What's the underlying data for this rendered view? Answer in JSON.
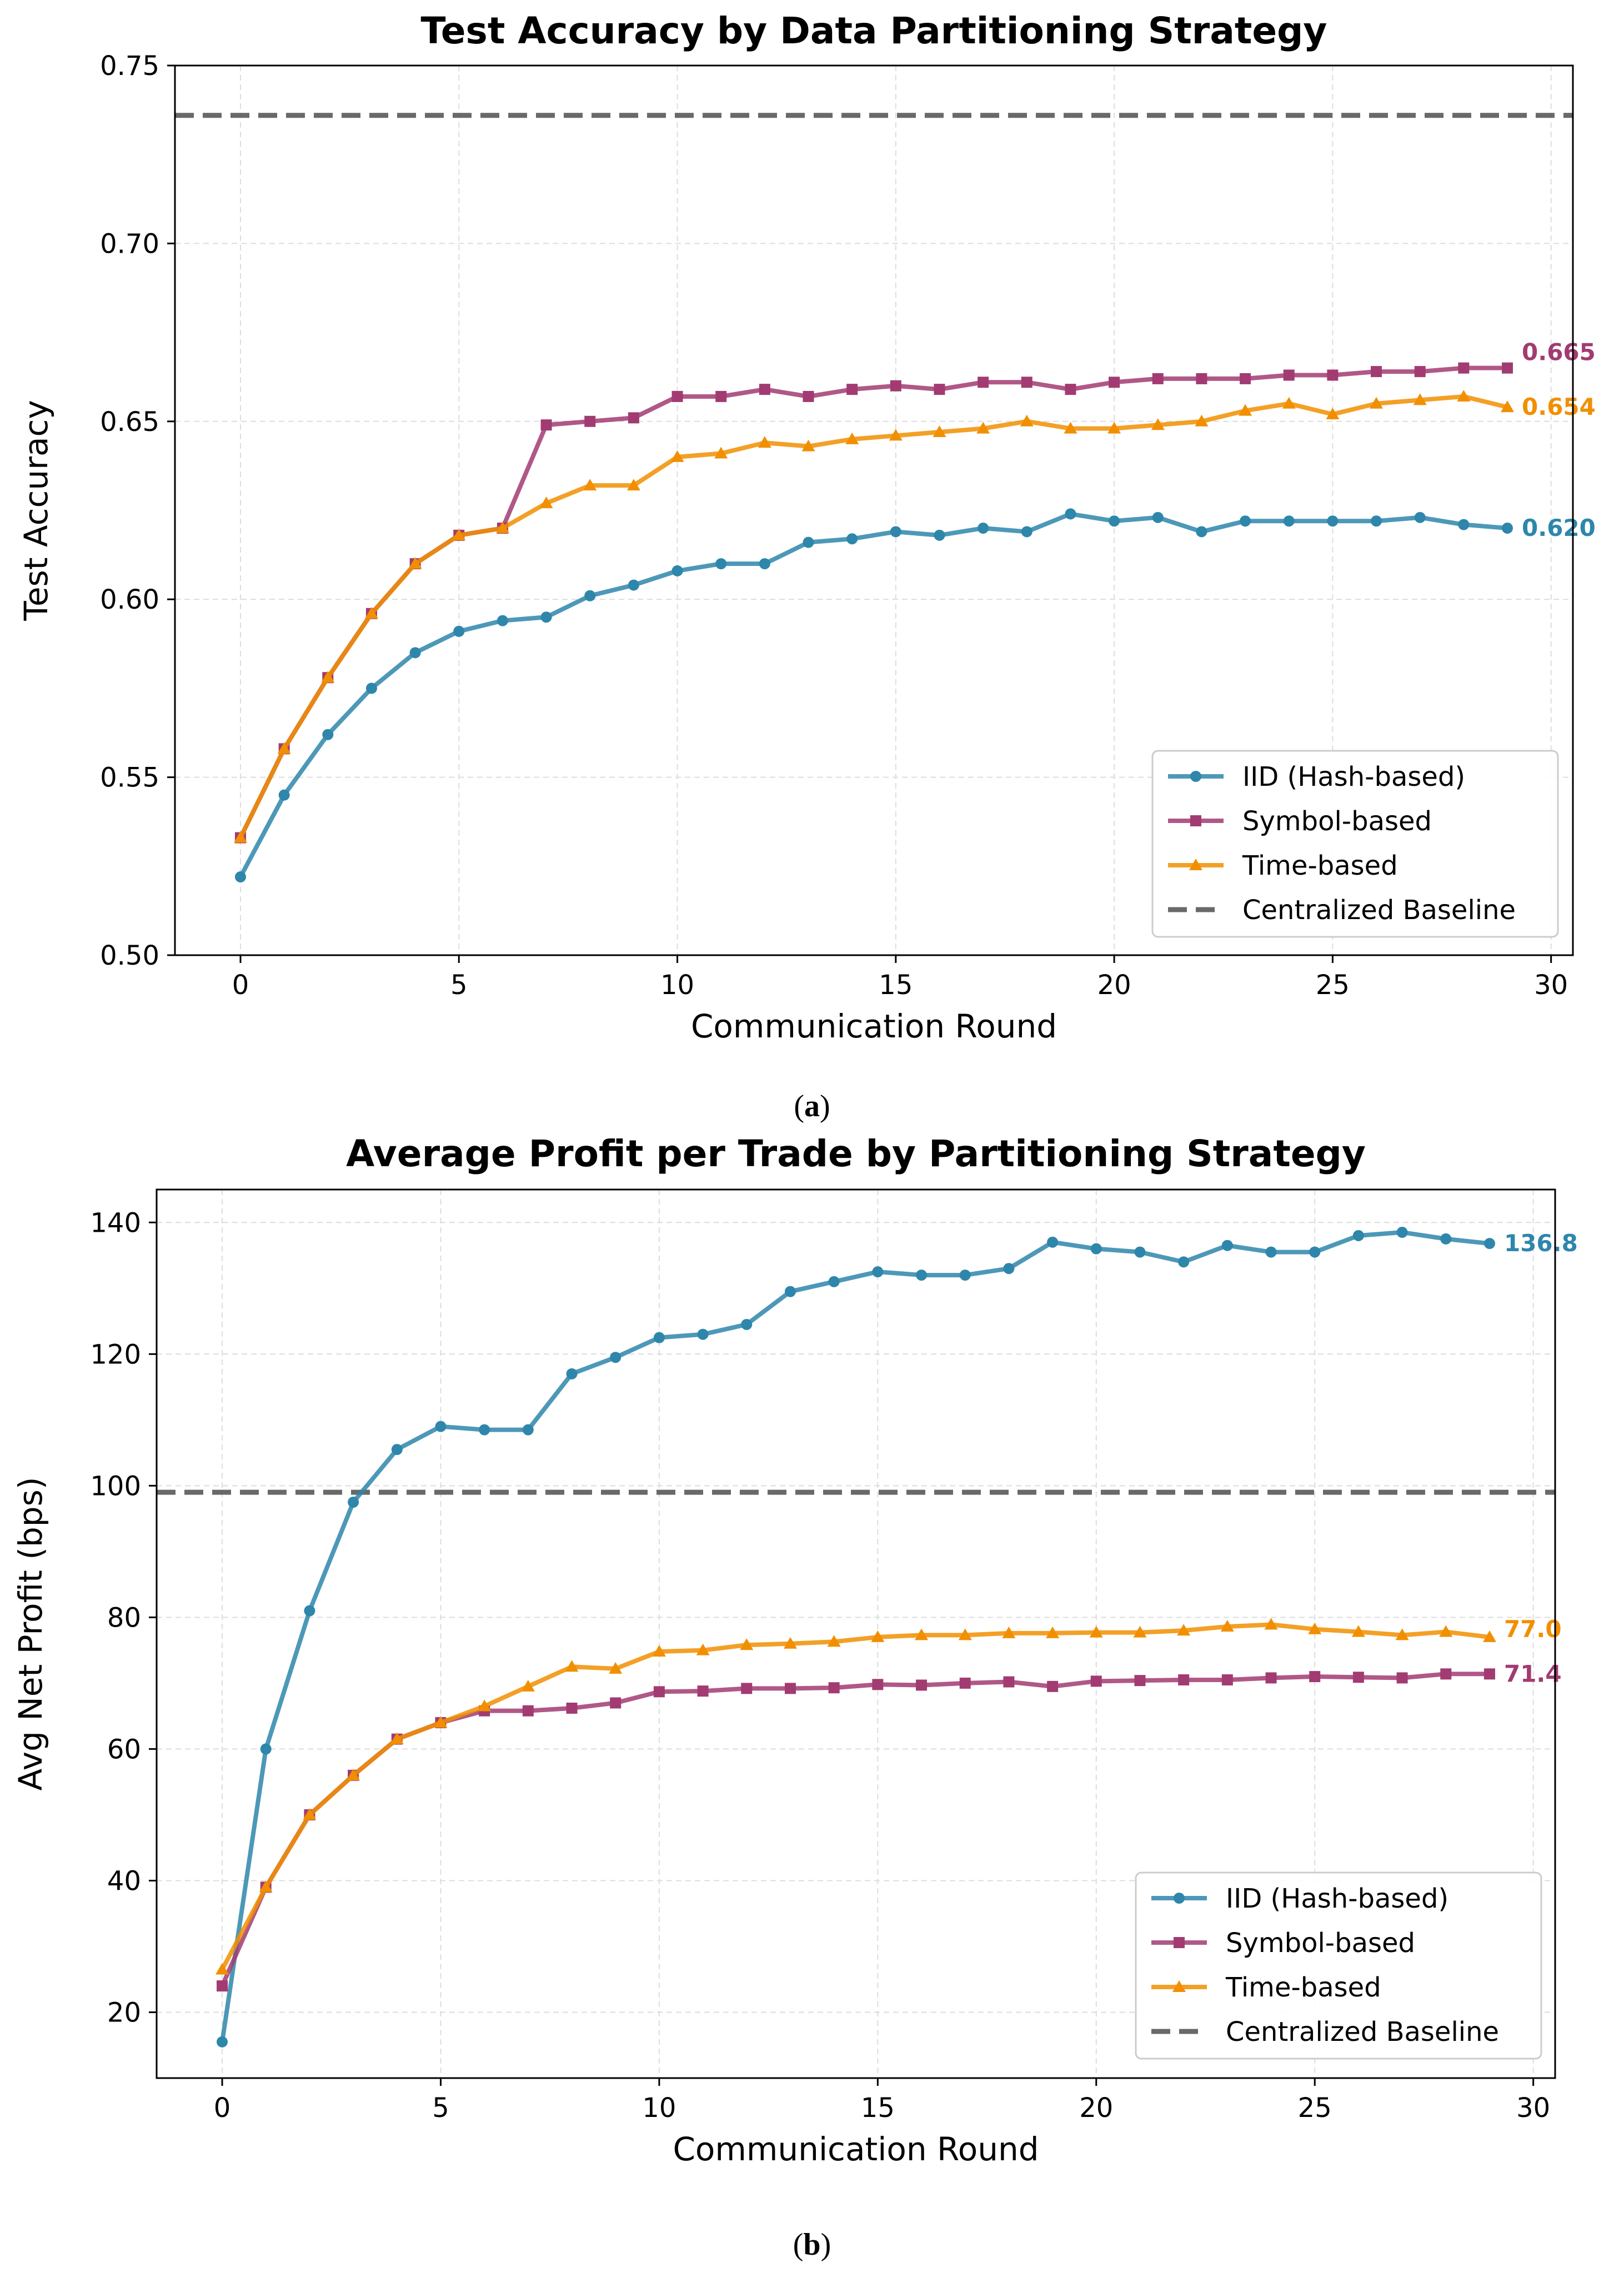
{
  "chart_data": [
    {
      "type": "line",
      "panel_label": "a",
      "title": "Test Accuracy by Data Partitioning Strategy",
      "xlabel": "Communication Round",
      "ylabel": "Test Accuracy",
      "xlim": [
        -1.5,
        30.5
      ],
      "ylim": [
        0.5,
        0.75
      ],
      "xticks": [
        0,
        5,
        10,
        15,
        20,
        25,
        30
      ],
      "yticks": [
        0.5,
        0.55,
        0.6,
        0.65,
        0.7,
        0.75
      ],
      "ytick_labels": [
        "0.50",
        "0.55",
        "0.60",
        "0.65",
        "0.70",
        "0.75"
      ],
      "grid": true,
      "legend_position": "lower-right",
      "x": [
        0,
        1,
        2,
        3,
        4,
        5,
        6,
        7,
        8,
        9,
        10,
        11,
        12,
        13,
        14,
        15,
        16,
        17,
        18,
        19,
        20,
        21,
        22,
        23,
        24,
        25,
        26,
        27,
        28,
        29
      ],
      "series": [
        {
          "name": "IID (Hash-based)",
          "color": "#2e86ab",
          "marker": "circle",
          "values": [
            0.522,
            0.545,
            0.562,
            0.575,
            0.585,
            0.591,
            0.594,
            0.595,
            0.601,
            0.604,
            0.608,
            0.61,
            0.61,
            0.616,
            0.617,
            0.619,
            0.618,
            0.62,
            0.619,
            0.624,
            0.622,
            0.623,
            0.619,
            0.622,
            0.622,
            0.622,
            0.622,
            0.623,
            0.621,
            0.62
          ],
          "end_label": "0.620"
        },
        {
          "name": "Symbol-based",
          "color": "#a23b72",
          "marker": "square",
          "values": [
            0.533,
            0.558,
            0.578,
            0.596,
            0.61,
            0.618,
            0.62,
            0.649,
            0.65,
            0.651,
            0.657,
            0.657,
            0.659,
            0.657,
            0.659,
            0.66,
            0.659,
            0.661,
            0.661,
            0.659,
            0.661,
            0.662,
            0.662,
            0.662,
            0.663,
            0.663,
            0.664,
            0.664,
            0.665,
            0.665
          ],
          "end_label": "0.665"
        },
        {
          "name": "Time-based",
          "color": "#f18f01",
          "marker": "triangle",
          "values": [
            0.533,
            0.558,
            0.578,
            0.596,
            0.61,
            0.618,
            0.62,
            0.627,
            0.632,
            0.632,
            0.64,
            0.641,
            0.644,
            0.643,
            0.645,
            0.646,
            0.647,
            0.648,
            0.65,
            0.648,
            0.648,
            0.649,
            0.65,
            0.653,
            0.655,
            0.652,
            0.655,
            0.656,
            0.657,
            0.654
          ],
          "end_label": "0.654"
        }
      ],
      "baseline": {
        "name": "Centralized Baseline",
        "value": 0.736,
        "color": "#696969",
        "style": "dashed"
      }
    },
    {
      "type": "line",
      "panel_label": "b",
      "title": "Average Profit per Trade by Partitioning Strategy",
      "xlabel": "Communication Round",
      "ylabel": "Avg Net Profit (bps)",
      "xlim": [
        -1.5,
        30.5
      ],
      "ylim": [
        10,
        145
      ],
      "xticks": [
        0,
        5,
        10,
        15,
        20,
        25,
        30
      ],
      "yticks": [
        20,
        40,
        60,
        80,
        100,
        120,
        140
      ],
      "ytick_labels": [
        "20",
        "40",
        "60",
        "80",
        "100",
        "120",
        "140"
      ],
      "grid": true,
      "legend_position": "lower-right",
      "x": [
        0,
        1,
        2,
        3,
        4,
        5,
        6,
        7,
        8,
        9,
        10,
        11,
        12,
        13,
        14,
        15,
        16,
        17,
        18,
        19,
        20,
        21,
        22,
        23,
        24,
        25,
        26,
        27,
        28,
        29
      ],
      "series": [
        {
          "name": "IID (Hash-based)",
          "color": "#2e86ab",
          "marker": "circle",
          "values": [
            15.5,
            60,
            81,
            97.5,
            105.5,
            109,
            108.5,
            108.5,
            117,
            119.5,
            122.5,
            123,
            124.5,
            129.5,
            131,
            132.5,
            132,
            132,
            133,
            137,
            136,
            135.5,
            134,
            136.5,
            135.5,
            135.5,
            138,
            138.5,
            137.5,
            136.8
          ],
          "end_label": "136.8"
        },
        {
          "name": "Symbol-based",
          "color": "#a23b72",
          "marker": "square",
          "values": [
            24,
            39,
            50,
            56,
            61.5,
            64,
            65.8,
            65.8,
            66.2,
            67,
            68.7,
            68.8,
            69.2,
            69.2,
            69.3,
            69.8,
            69.7,
            70,
            70.2,
            69.5,
            70.3,
            70.4,
            70.5,
            70.5,
            70.8,
            71,
            70.9,
            70.8,
            71.4,
            71.4
          ],
          "end_label": "71.4"
        },
        {
          "name": "Time-based",
          "color": "#f18f01",
          "marker": "triangle",
          "values": [
            26.5,
            39,
            50,
            56,
            61.5,
            64,
            66.5,
            69.5,
            72.5,
            72.2,
            74.8,
            75,
            75.8,
            76,
            76.3,
            77,
            77.3,
            77.3,
            77.6,
            77.6,
            77.7,
            77.7,
            78,
            78.6,
            78.9,
            78.2,
            77.8,
            77.3,
            77.8,
            77.0
          ],
          "end_label": "77.0"
        }
      ],
      "baseline": {
        "name": "Centralized Baseline",
        "value": 99,
        "color": "#696969",
        "style": "dashed"
      }
    }
  ]
}
